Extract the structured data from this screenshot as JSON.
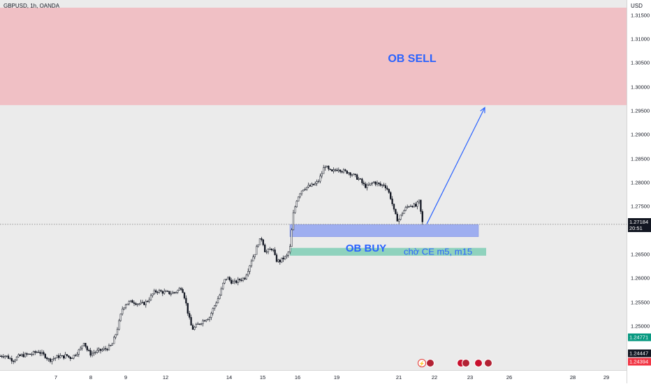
{
  "header": {
    "symbol": "GBPUSD, 1h, OANDA"
  },
  "price_axis": {
    "currency": "USD",
    "ticks": [
      "1.31500",
      "1.31000",
      "1.30500",
      "1.30000",
      "1.29500",
      "1.29000",
      "1.28500",
      "1.28000",
      "1.27500",
      "1.26500",
      "1.26000",
      "1.25500",
      "1.25000"
    ],
    "last_price": "1.27184",
    "countdown": "20:51",
    "badge_green": "1.24771",
    "badge_dark": "1.24447",
    "badge_red": "1.24394"
  },
  "time_axis": {
    "ticks": [
      "7",
      "8",
      "9",
      "12",
      "14",
      "15",
      "16",
      "19",
      "21",
      "22",
      "23",
      "26",
      "28",
      "29"
    ]
  },
  "annotations": {
    "ob_sell": "OB SELL",
    "ob_buy": "OB BUY",
    "note": "chờ CE m5, m15"
  },
  "colors": {
    "sell_zone": "#f0c0c5",
    "buy_zone_blue": "#9eaef0",
    "buy_zone_green": "#8fd2bd",
    "arrow": "#2962ff",
    "label": "#2962ff",
    "candle_up": "#ffffff",
    "candle_down": "#131722"
  },
  "icons": [
    "flash-event-icon",
    "us-flag-icon",
    "uk-flag-icon"
  ],
  "chart_data": {
    "type": "candlestick",
    "symbol": "GBPUSD",
    "interval": "1h",
    "ylim": [
      1.2435,
      1.3163
    ],
    "x_ticks": [
      "7",
      "8",
      "9",
      "12",
      "14",
      "15",
      "16",
      "19",
      "21",
      "22",
      "23",
      "26",
      "28",
      "29"
    ],
    "close_path": [
      [
        0,
        1.2448
      ],
      [
        5,
        1.245
      ],
      [
        10,
        1.2447
      ],
      [
        15,
        1.2442
      ],
      [
        20,
        1.244
      ],
      [
        25,
        1.2446
      ],
      [
        30,
        1.2449
      ],
      [
        35,
        1.245
      ],
      [
        40,
        1.2451
      ],
      [
        45,
        1.2452
      ],
      [
        50,
        1.2455
      ],
      [
        55,
        1.2458
      ],
      [
        60,
        1.2452
      ],
      [
        65,
        1.2448
      ],
      [
        70,
        1.244
      ],
      [
        75,
        1.2442
      ],
      [
        80,
        1.2445
      ],
      [
        85,
        1.2448
      ],
      [
        90,
        1.2446
      ],
      [
        95,
        1.245
      ],
      [
        100,
        1.2444
      ],
      [
        105,
        1.2448
      ],
      [
        110,
        1.2455
      ],
      [
        115,
        1.2462
      ],
      [
        120,
        1.2478
      ],
      [
        125,
        1.246
      ],
      [
        130,
        1.2452
      ],
      [
        135,
        1.2456
      ],
      [
        140,
        1.2458
      ],
      [
        145,
        1.246
      ],
      [
        150,
        1.2462
      ],
      [
        155,
        1.2465
      ],
      [
        160,
        1.247
      ],
      [
        165,
        1.249
      ],
      [
        170,
        1.2515
      ],
      [
        175,
        1.2545
      ],
      [
        180,
        1.2555
      ],
      [
        185,
        1.2558
      ],
      [
        190,
        1.256
      ],
      [
        195,
        1.2557
      ],
      [
        200,
        1.2555
      ],
      [
        205,
        1.2555
      ],
      [
        210,
        1.256
      ],
      [
        215,
        1.2568
      ],
      [
        220,
        1.2578
      ],
      [
        225,
        1.2582
      ],
      [
        230,
        1.258
      ],
      [
        235,
        1.2579
      ],
      [
        240,
        1.2578
      ],
      [
        245,
        1.2577
      ],
      [
        250,
        1.2579
      ],
      [
        255,
        1.2583
      ],
      [
        260,
        1.259
      ],
      [
        265,
        1.2565
      ],
      [
        270,
        1.253
      ],
      [
        275,
        1.2503
      ],
      [
        280,
        1.2508
      ],
      [
        285,
        1.2515
      ],
      [
        290,
        1.252
      ],
      [
        295,
        1.2525
      ],
      [
        300,
        1.2528
      ],
      [
        305,
        1.2545
      ],
      [
        310,
        1.256
      ],
      [
        315,
        1.2575
      ],
      [
        320,
        1.26
      ],
      [
        325,
        1.261
      ],
      [
        330,
        1.2602
      ],
      [
        335,
        1.2598
      ],
      [
        340,
        1.2602
      ],
      [
        345,
        1.2606
      ],
      [
        350,
        1.2608
      ],
      [
        355,
        1.2625
      ],
      [
        360,
        1.2645
      ],
      [
        365,
        1.266
      ],
      [
        370,
        1.2682
      ],
      [
        375,
        1.269
      ],
      [
        380,
        1.266
      ],
      [
        385,
        1.2665
      ],
      [
        390,
        1.267
      ],
      [
        395,
        1.2645
      ],
      [
        400,
        1.2642
      ],
      [
        405,
        1.2648
      ],
      [
        410,
        1.2652
      ],
      [
        415,
        1.2668
      ],
      [
        420,
        1.274
      ],
      [
        425,
        1.277
      ],
      [
        430,
        1.2785
      ],
      [
        435,
        1.2793
      ],
      [
        440,
        1.2795
      ],
      [
        445,
        1.2797
      ],
      [
        450,
        1.28
      ],
      [
        455,
        1.2805
      ],
      [
        460,
        1.282
      ],
      [
        465,
        1.284
      ],
      [
        470,
        1.283
      ],
      [
        475,
        1.2825
      ],
      [
        480,
        1.283
      ],
      [
        485,
        1.2833
      ],
      [
        490,
        1.2828
      ],
      [
        495,
        1.2826
      ],
      [
        500,
        1.2825
      ],
      [
        505,
        1.282
      ],
      [
        510,
        1.2815
      ],
      [
        515,
        1.281
      ],
      [
        520,
        1.28
      ],
      [
        525,
        1.2795
      ],
      [
        530,
        1.28
      ],
      [
        535,
        1.2805
      ],
      [
        540,
        1.2802
      ],
      [
        545,
        1.2798
      ],
      [
        550,
        1.28
      ],
      [
        555,
        1.279
      ],
      [
        560,
        1.277
      ],
      [
        565,
        1.274
      ],
      [
        570,
        1.2725
      ],
      [
        575,
        1.274
      ],
      [
        580,
        1.275
      ],
      [
        585,
        1.2757
      ],
      [
        590,
        1.2758
      ],
      [
        595,
        1.2755
      ],
      [
        600,
        1.2765
      ],
      [
        605,
        1.272
      ]
    ],
    "zones": [
      {
        "label": "OB SELL",
        "top": 1.3163,
        "bottom": 1.2963
      },
      {
        "label": "OB BUY",
        "top": 1.2718,
        "bottom": 1.2693
      },
      {
        "label": "chờ CE m5, m15",
        "top": 1.267,
        "bottom": 1.2654
      }
    ],
    "projection": {
      "from": 1.2719,
      "to": 1.2958
    },
    "last_price": 1.27184
  }
}
